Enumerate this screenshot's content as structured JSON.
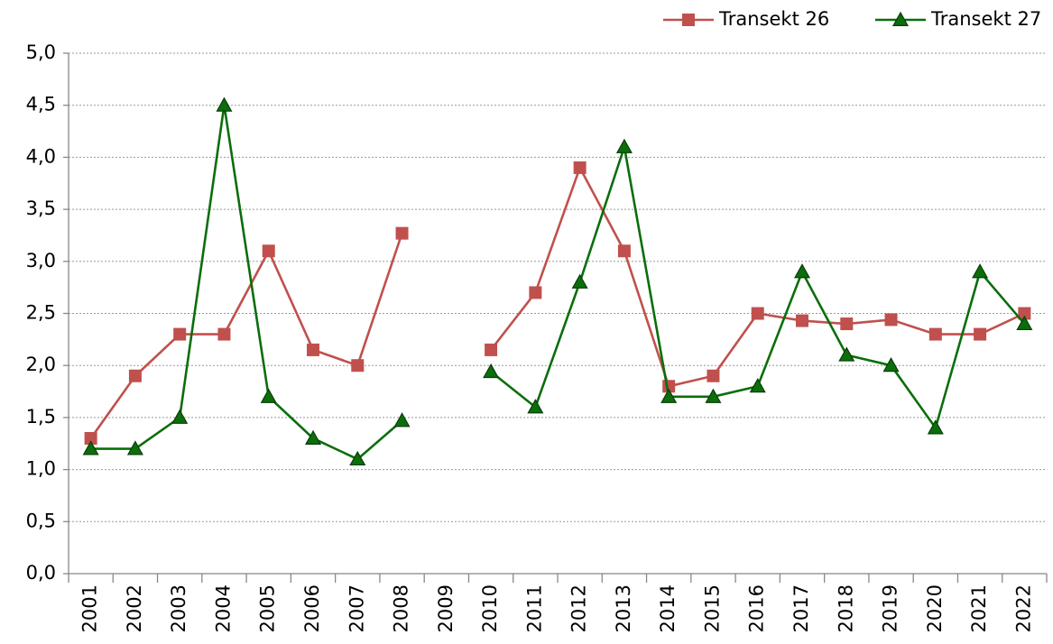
{
  "chart_data": {
    "type": "line",
    "categories": [
      "2001",
      "2002",
      "2003",
      "2004",
      "2005",
      "2006",
      "2007",
      "2008",
      "2009",
      "2010",
      "2011",
      "2012",
      "2013",
      "2014",
      "2015",
      "2016",
      "2017",
      "2018",
      "2019",
      "2020",
      "2021",
      "2022"
    ],
    "series": [
      {
        "name": "Transekt 26",
        "color": "#c0504d",
        "marker": "square",
        "values": [
          1.3,
          1.9,
          2.3,
          2.3,
          3.1,
          2.15,
          2.0,
          3.27,
          null,
          2.15,
          2.7,
          3.9,
          3.1,
          1.8,
          1.9,
          2.5,
          2.43,
          2.4,
          2.44,
          2.3,
          2.3,
          2.5
        ]
      },
      {
        "name": "Transekt 27",
        "color": "#0b6e0b",
        "marker": "triangle",
        "values": [
          1.2,
          1.2,
          1.5,
          4.5,
          1.7,
          1.3,
          1.1,
          1.47,
          null,
          1.94,
          1.6,
          2.8,
          4.1,
          1.7,
          1.7,
          1.8,
          2.9,
          2.1,
          2.0,
          1.4,
          2.9,
          2.4
        ]
      }
    ],
    "ylim": [
      0,
      5
    ],
    "yticks": [
      {
        "value": 0,
        "label": "0,0"
      },
      {
        "value": 0.5,
        "label": "0,5"
      },
      {
        "value": 1,
        "label": "1,0"
      },
      {
        "value": 1.5,
        "label": "1,5"
      },
      {
        "value": 2,
        "label": "2,0"
      },
      {
        "value": 2.5,
        "label": "2,5"
      },
      {
        "value": 3,
        "label": "3,0"
      },
      {
        "value": 3.5,
        "label": "3,5"
      },
      {
        "value": 4,
        "label": "4,0"
      },
      {
        "value": 4.5,
        "label": "4,5"
      },
      {
        "value": 5,
        "label": "5,0"
      }
    ],
    "grid": true,
    "legend": "top-right"
  }
}
